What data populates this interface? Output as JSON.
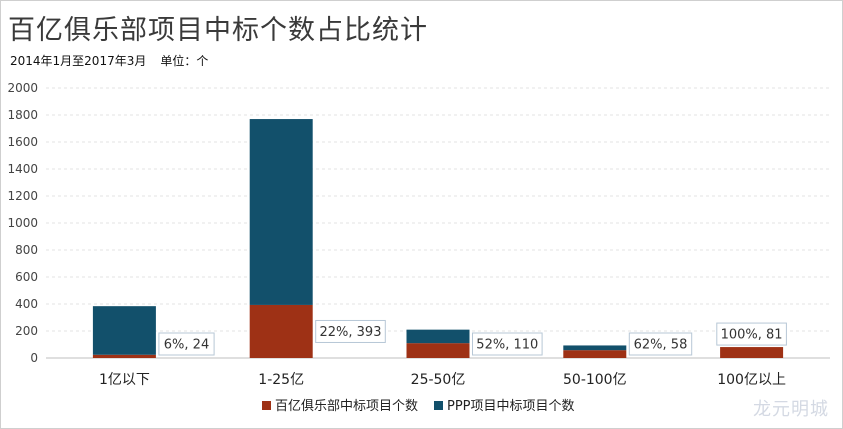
{
  "page": {
    "title": "百亿俱乐部项目中标个数占比统计",
    "subtitle_period": "2014年1月至2017年3月",
    "subtitle_unit": "单位：个",
    "watermark": "龙元明城"
  },
  "chart_data": {
    "type": "bar",
    "stacked": true,
    "title": "百亿俱乐部项目中标个数占比统计",
    "categories": [
      "1亿以下",
      "1-25亿",
      "25-50亿",
      "50-100亿",
      "100亿以上"
    ],
    "series": [
      {
        "name": "百亿俱乐部中标项目个数",
        "color": "#9e3115",
        "values": [
          24,
          393,
          110,
          58,
          81
        ]
      },
      {
        "name": "PPP项目中标项目个数",
        "color": "#12506b",
        "values": [
          360,
          1377,
          100,
          35,
          0
        ]
      }
    ],
    "data_labels": [
      "6%, 24",
      "22%, 393",
      "52%, 110",
      "62%, 58",
      "100%, 81"
    ],
    "ylim": [
      0,
      2000
    ],
    "yticks": [
      0,
      200,
      400,
      600,
      800,
      1000,
      1200,
      1400,
      1600,
      1800,
      2000
    ],
    "grid": true,
    "legend_position": "bottom"
  }
}
